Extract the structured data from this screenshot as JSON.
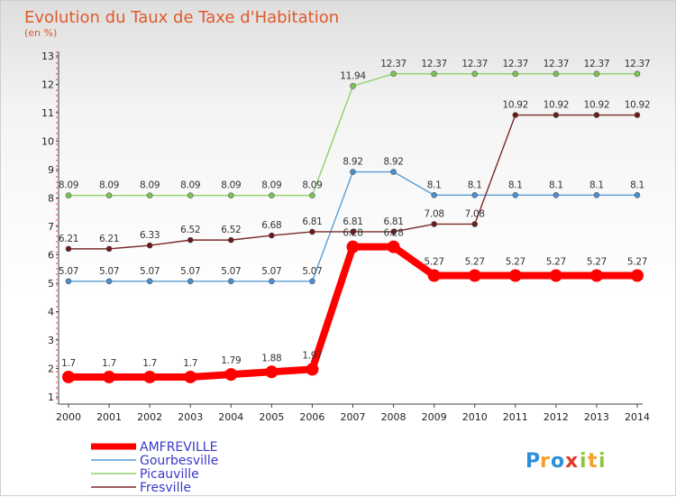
{
  "chart_data": {
    "type": "line",
    "title": "Evolution du Taux de Taxe d'Habitation",
    "subtitle": "(en %)",
    "categories": [
      "2000",
      "2001",
      "2002",
      "2003",
      "2004",
      "2005",
      "2006",
      "2007",
      "2008",
      "2009",
      "2010",
      "2011",
      "2012",
      "2013",
      "2014"
    ],
    "ylim": [
      1,
      13
    ],
    "yticks": [
      "1",
      "2",
      "3",
      "4",
      "5",
      "6",
      "7",
      "8",
      "9",
      "10",
      "11",
      "12",
      "13"
    ],
    "grid": false,
    "legend_position": "bottom-left",
    "series": [
      {
        "name": "Picauville",
        "color": "#8fd06a",
        "point_color": "#7dc653",
        "values": [
          8.09,
          8.09,
          8.09,
          8.09,
          8.09,
          8.09,
          8.09,
          11.94,
          12.37,
          12.37,
          12.37,
          12.37,
          12.37,
          12.37,
          12.37
        ],
        "labels": [
          "8.09",
          "8.09",
          "8.09",
          "8.09",
          "8.09",
          "8.09",
          "8.09",
          "11.94",
          "12.37",
          "12.37",
          "12.37",
          "12.37",
          "12.37",
          "12.37",
          "12.37"
        ]
      },
      {
        "name": "Gourbesville",
        "color": "#5a9ed6",
        "point_color": "#4a8fcf",
        "values": [
          5.07,
          5.07,
          5.07,
          5.07,
          5.07,
          5.07,
          5.07,
          8.92,
          8.92,
          8.1,
          8.1,
          8.1,
          8.1,
          8.1,
          8.1
        ],
        "labels": [
          "5.07",
          "5.07",
          "5.07",
          "5.07",
          "5.07",
          "5.07",
          "5.07",
          "8.92",
          "8.92",
          "8.1",
          "8.1",
          "8.1",
          "8.1",
          "8.1",
          "8.1"
        ]
      },
      {
        "name": "Fresville",
        "color": "#7a2a2a",
        "point_color": "#6a1a1a",
        "values": [
          6.21,
          6.21,
          6.33,
          6.52,
          6.52,
          6.68,
          6.81,
          6.81,
          6.81,
          7.08,
          7.08,
          10.92,
          10.92,
          10.92,
          10.92
        ],
        "labels": [
          "6.21",
          "6.21",
          "6.33",
          "6.52",
          "6.52",
          "6.68",
          "6.81",
          "6.81",
          "6.81",
          "7.08",
          "7.08",
          "10.92",
          "10.92",
          "10.92",
          "10.92"
        ]
      },
      {
        "name": "AMFREVILLE",
        "color": "#ff0000",
        "point_color": "#ff0000",
        "values": [
          1.7,
          1.7,
          1.7,
          1.7,
          1.79,
          1.88,
          1.97,
          6.28,
          6.28,
          5.27,
          5.27,
          5.27,
          5.27,
          5.27,
          5.27
        ],
        "labels": [
          "1.7",
          "1.7",
          "1.7",
          "1.7",
          "1.79",
          "1.88",
          "1.97",
          "6.28",
          "6.28",
          "5.27",
          "5.27",
          "5.27",
          "5.27",
          "5.27",
          "5.27"
        ]
      }
    ],
    "legend_order": [
      "AMFREVILLE",
      "Gourbesville",
      "Picauville",
      "Fresville"
    ]
  },
  "logo": {
    "text": "Proxiti",
    "letters": [
      "P",
      "r",
      "o",
      "x",
      "i",
      "t",
      "i"
    ],
    "colors": [
      "#2e8fd6",
      "#f2a12b",
      "#2e8fd6",
      "#e03a2a",
      "#8fc641",
      "#f2a12b",
      "#8fc641"
    ]
  }
}
